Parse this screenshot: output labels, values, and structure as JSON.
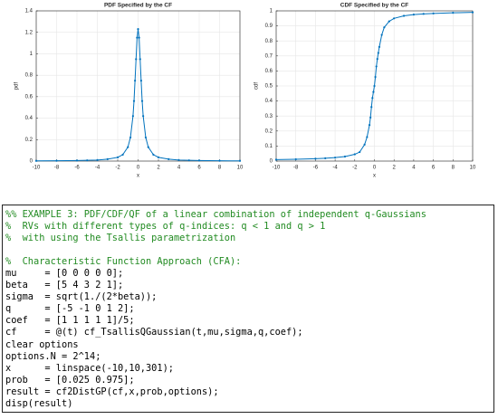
{
  "chart_data": [
    {
      "type": "line",
      "title": "PDF Specified by the CF",
      "x_label": "x",
      "y_label": "pdf",
      "x": [
        -10,
        -8,
        -6,
        -5,
        -4,
        -3,
        -2,
        -1.5,
        -1,
        -0.75,
        -0.5,
        -0.4,
        -0.3,
        -0.2,
        -0.1,
        0,
        0.1,
        0.2,
        0.3,
        0.4,
        0.5,
        0.75,
        1,
        1.5,
        2,
        3,
        4,
        5,
        6,
        8,
        10
      ],
      "series": [
        {
          "color": "#0072bd",
          "values": [
            0.002,
            0.003,
            0.005,
            0.007,
            0.01,
            0.018,
            0.035,
            0.06,
            0.13,
            0.22,
            0.42,
            0.56,
            0.75,
            0.95,
            1.15,
            1.23,
            1.15,
            0.95,
            0.75,
            0.56,
            0.42,
            0.22,
            0.13,
            0.06,
            0.035,
            0.018,
            0.01,
            0.007,
            0.005,
            0.003,
            0.002
          ]
        }
      ],
      "xlim": [
        -10,
        10
      ],
      "xticks": [
        -10,
        -8,
        -6,
        -4,
        -2,
        0,
        2,
        4,
        6,
        8,
        10
      ],
      "ylim": [
        0,
        1.4
      ],
      "yticks": [
        0,
        0.2,
        0.4,
        0.6,
        0.8,
        1,
        1.2,
        1.4
      ],
      "grid": true
    },
    {
      "type": "line",
      "title": "CDF Specified by the CF",
      "x_label": "x",
      "y_label": "cdf",
      "x": [
        -10,
        -8,
        -6,
        -5,
        -4,
        -3,
        -2,
        -1.5,
        -1,
        -0.75,
        -0.5,
        -0.4,
        -0.3,
        -0.2,
        -0.1,
        0,
        0.1,
        0.2,
        0.3,
        0.4,
        0.5,
        0.75,
        1,
        1.5,
        2,
        3,
        4,
        5,
        6,
        8,
        10
      ],
      "series": [
        {
          "color": "#0072bd",
          "values": [
            0.01,
            0.012,
            0.016,
            0.019,
            0.023,
            0.03,
            0.045,
            0.06,
            0.11,
            0.16,
            0.24,
            0.29,
            0.36,
            0.42,
            0.46,
            0.5,
            0.56,
            0.63,
            0.68,
            0.72,
            0.76,
            0.84,
            0.89,
            0.93,
            0.95,
            0.967,
            0.975,
            0.98,
            0.983,
            0.987,
            0.99
          ]
        }
      ],
      "xlim": [
        -10,
        10
      ],
      "xticks": [
        -10,
        -8,
        -6,
        -4,
        -2,
        0,
        2,
        4,
        6,
        8,
        10
      ],
      "ylim": [
        0,
        1
      ],
      "yticks": [
        0,
        0.1,
        0.2,
        0.3,
        0.4,
        0.5,
        0.6,
        0.7,
        0.8,
        0.9,
        1
      ],
      "grid": true
    }
  ],
  "code": {
    "blocks": [
      [
        "%% EXAMPLE 3: PDF/CDF/QF of a linear combination of independent q-Gaussians",
        "%  RVs with different types of q-indices: q < 1 and q > 1",
        "%  with using the Tsallis parametrization"
      ],
      [
        "%  Characteristic Function Approach (CFA):",
        "mu     = [0 0 0 0 0];",
        "beta   = [5 4 3 2 1];",
        "sigma  = sqrt(1./(2*beta));",
        "q      = [-5 -1 0 1 2];",
        "coef   = [1 1 1 1 1]/5;",
        "cf     = @(t) cf_TsallisQGaussian(t,mu,sigma,q,coef);",
        "clear options",
        "options.N = 2^14;",
        "x      = linspace(-10,10,301);",
        "prob   = [0.025 0.975];",
        "result = cf2DistGP(cf,x,prob,options);",
        "disp(result)"
      ]
    ]
  }
}
